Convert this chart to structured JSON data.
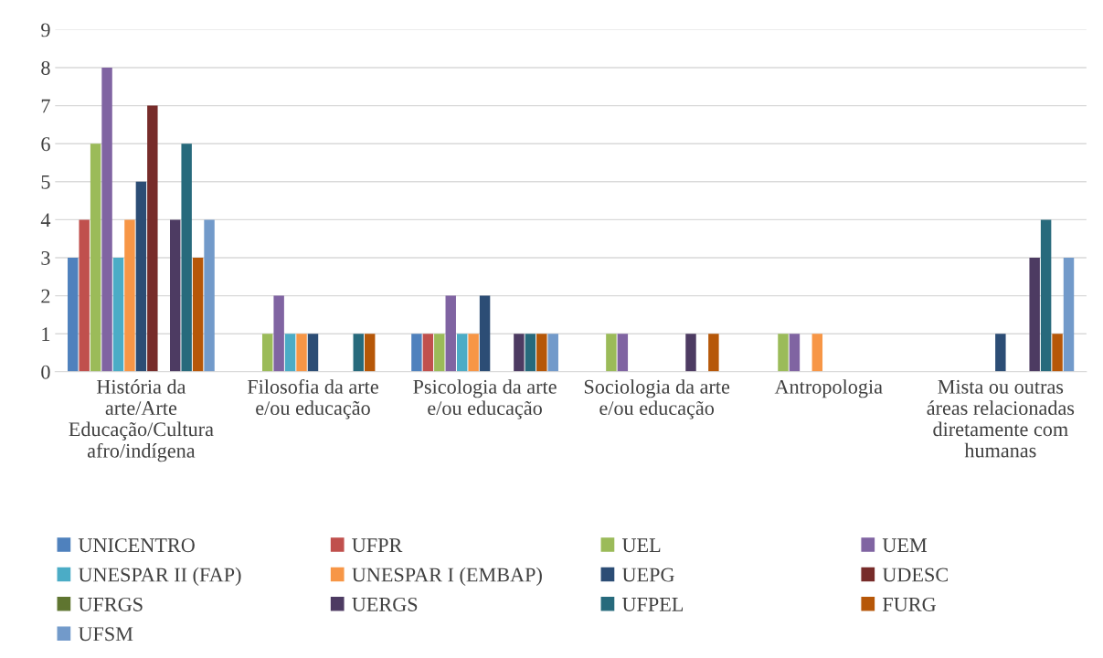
{
  "chart_data": {
    "type": "bar",
    "categories": [
      "História da arte/Arte Educação/Cultura afro/indígena",
      "Filosofia da arte e/ou educação",
      "Psicologia da arte e/ou educação",
      "Sociologia da arte e/ou educação",
      "Antropologia",
      "Mista ou outras áreas relacionadas diretamente com humanas"
    ],
    "series": [
      {
        "name": "UNICENTRO",
        "color": "#4f81bd",
        "values": [
          3,
          0,
          1,
          0,
          0,
          0
        ]
      },
      {
        "name": "UFPR",
        "color": "#c0504d",
        "values": [
          4,
          0,
          1,
          0,
          0,
          0
        ]
      },
      {
        "name": "UEL",
        "color": "#9bbb59",
        "values": [
          6,
          1,
          1,
          1,
          1,
          0
        ]
      },
      {
        "name": "UEM",
        "color": "#8064a2",
        "values": [
          8,
          2,
          2,
          1,
          1,
          0
        ]
      },
      {
        "name": "UNESPAR II (FAP)",
        "color": "#4bacc6",
        "values": [
          3,
          1,
          1,
          0,
          0,
          0
        ]
      },
      {
        "name": "UNESPAR I (EMBAP)",
        "color": "#f79646",
        "values": [
          4,
          1,
          1,
          0,
          1,
          0
        ]
      },
      {
        "name": "UEPG",
        "color": "#2c4d75",
        "values": [
          5,
          1,
          2,
          0,
          0,
          1
        ]
      },
      {
        "name": "UDESC",
        "color": "#772c2a",
        "values": [
          7,
          0,
          0,
          0,
          0,
          0
        ]
      },
      {
        "name": "UFRGS",
        "color": "#5f7530",
        "values": [
          0,
          0,
          0,
          0,
          0,
          0
        ]
      },
      {
        "name": "UERGS",
        "color": "#4d3b62",
        "values": [
          4,
          0,
          1,
          1,
          0,
          3
        ]
      },
      {
        "name": "UFPEL",
        "color": "#276a7c",
        "values": [
          6,
          1,
          1,
          0,
          0,
          4
        ]
      },
      {
        "name": "FURG",
        "color": "#b65708",
        "values": [
          3,
          1,
          1,
          1,
          0,
          1
        ]
      },
      {
        "name": "UFSM",
        "color": "#729aca",
        "values": [
          4,
          0,
          1,
          0,
          0,
          3
        ]
      }
    ],
    "ylim": [
      0,
      9
    ],
    "yticks": [
      0,
      1,
      2,
      3,
      4,
      5,
      6,
      7,
      8,
      9
    ],
    "grid": "y",
    "legend": "bottom"
  }
}
